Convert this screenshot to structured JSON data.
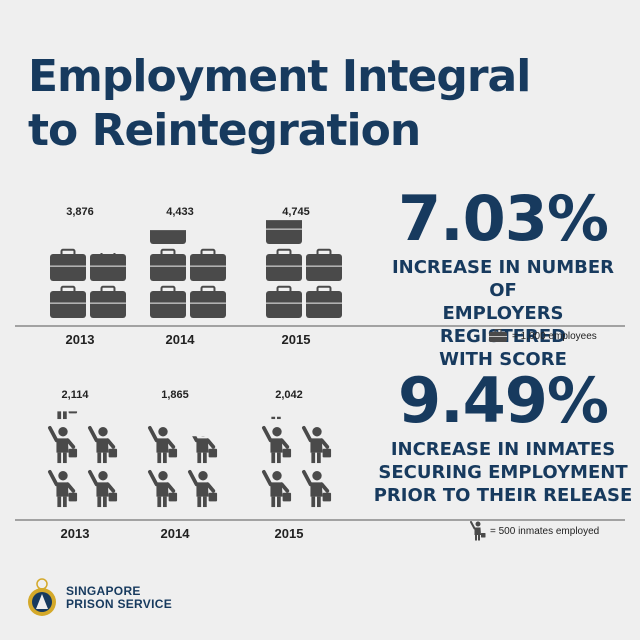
{
  "title": {
    "line1": "Employment Integral",
    "line2": "to Reintegration"
  },
  "stats": [
    {
      "value": "7.03%",
      "line1": "INCREASE IN NUMBER OF",
      "line2": "EMPLOYERS REGISTERED",
      "line3": "WITH SCORE"
    },
    {
      "value": "9.49%",
      "line1": "INCREASE IN INMATES",
      "line2": "SECURING EMPLOYMENT",
      "line3": "PRIOR TO THEIR RELEASE"
    }
  ],
  "legends": {
    "briefcase": "= 1,000 employees",
    "inmate": "= 500 inmates employed"
  },
  "logo": {
    "line1": "SINGAPORE",
    "line2": "PRISON SERVICE"
  },
  "colors": {
    "primary": "#173a5e",
    "icon": "#4a4a4a",
    "background": "#efefef"
  },
  "icons": {
    "unit_employers": "briefcase-icon",
    "unit_inmates": "inmate-icon"
  },
  "chart_data": [
    {
      "type": "bar",
      "categories": [
        "2013",
        "2014",
        "2015"
      ],
      "values": [
        3876,
        4433,
        4745
      ],
      "value_labels": [
        "3,876",
        "4,433",
        "4,745"
      ],
      "unit": 1000
    },
    {
      "type": "bar",
      "categories": [
        "2013",
        "2014",
        "2015"
      ],
      "values": [
        2114,
        1865,
        2042
      ],
      "value_labels": [
        "2,114",
        "1,865",
        "2,042"
      ],
      "unit": 500
    }
  ]
}
